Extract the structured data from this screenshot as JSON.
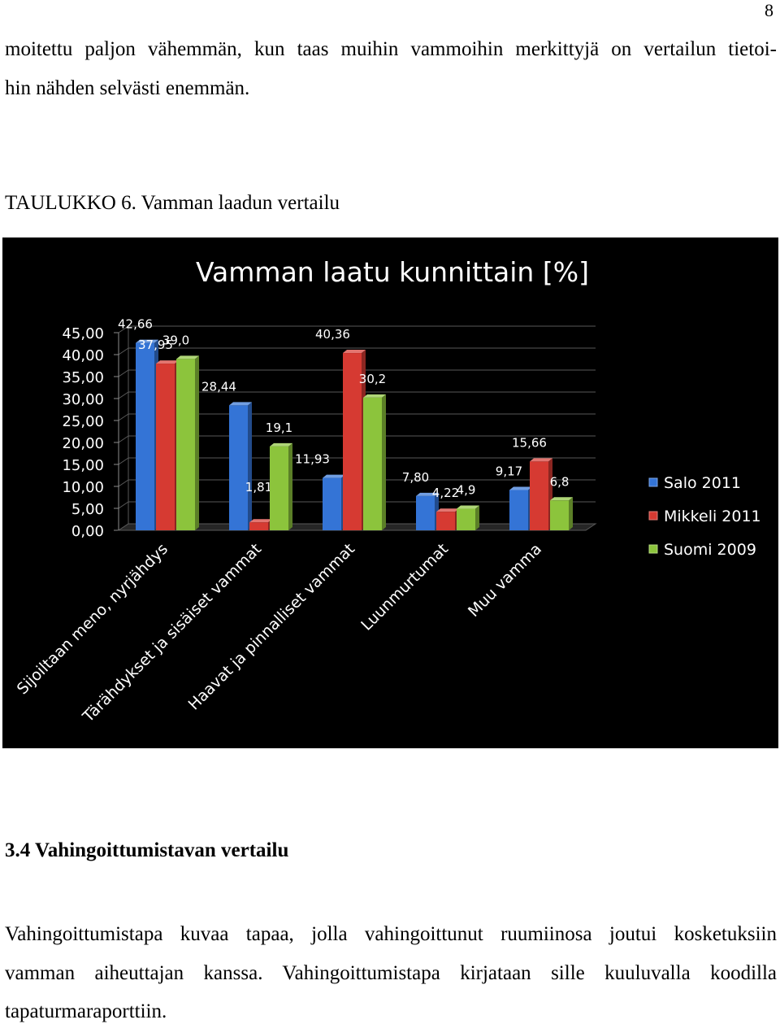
{
  "page_number": "8",
  "intro_paragraph": {
    "line1": "moitettu paljon vähemmän, kun taas muihin vammoihin merkittyjä on vertailun tietoi-",
    "line2": "hin nähden selvästi enemmän."
  },
  "table_caption": "TAULUKKO 6. Vamman laadun vertailu",
  "chart_data": {
    "type": "bar",
    "title": "Vamman laatu kunnittain [%]",
    "categories": [
      "Sijoiltaan meno, nyrjähdys",
      "Tärähdykset ja sisäiset vammat",
      "Haavat ja pinnalliset vammat",
      "Luunmurtumat",
      "Muu vamma"
    ],
    "series": [
      {
        "name": "Salo 2011",
        "color": "#3474d6",
        "values": [
          42.66,
          28.44,
          11.93,
          7.8,
          9.17
        ],
        "labels": [
          "42,66",
          "28,44",
          "11,93",
          "7,80",
          "9,17"
        ]
      },
      {
        "name": "Mikkeli 2011",
        "color": "#d63a32",
        "values": [
          37.95,
          1.81,
          40.36,
          4.22,
          15.66
        ],
        "labels": [
          "37,95",
          "1,81",
          "40,36",
          "4,22",
          "15,66"
        ]
      },
      {
        "name": "Suomi 2009",
        "color": "#8cc43c",
        "values": [
          39.0,
          19.1,
          30.2,
          4.9,
          6.8
        ],
        "labels": [
          "39,0",
          "19,1",
          "30,2",
          "4,9",
          "6,8"
        ]
      }
    ],
    "y_ticks": [
      "0,00",
      "5,00",
      "10,00",
      "15,00",
      "20,00",
      "25,00",
      "30,00",
      "35,00",
      "40,00",
      "45,00"
    ],
    "ylim": [
      0,
      45
    ],
    "xlabel": "",
    "ylabel": "",
    "background": "#000000",
    "grid": true,
    "legend_position": "right"
  },
  "section": {
    "heading": "3.4 Vahingoittumistavan vertailu",
    "paragraph": {
      "line1": "Vahingoittumistapa kuvaa tapaa, jolla vahingoittunut ruumiinosa joutui kosketuksiin",
      "line2": "vamman aiheuttajan kanssa. Vahingoittumistapa kirjataan sille kuuluvalla koodilla",
      "line3": "tapaturmaraporttiin."
    }
  }
}
